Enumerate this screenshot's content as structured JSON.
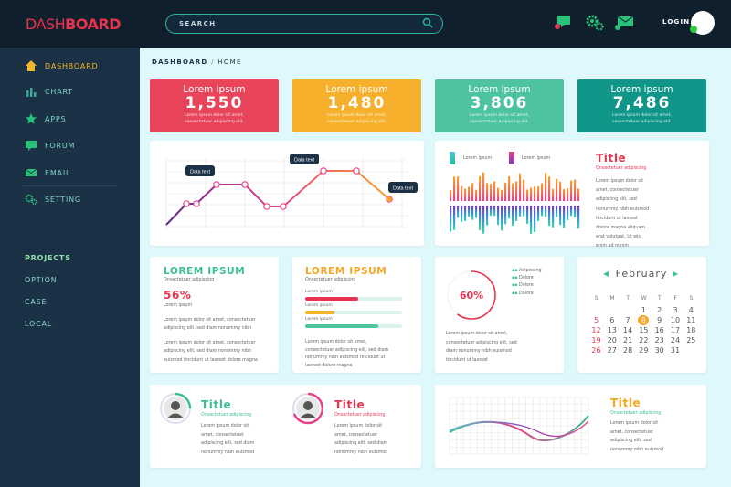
{
  "header": {
    "logo_part1": "DASH",
    "logo_part2": "BOARD",
    "search_placeholder": "SEARCH",
    "login_label": "LOGIN",
    "icons": [
      "chat-icon",
      "settings-gears-icon",
      "mail-icon"
    ]
  },
  "sidebar": {
    "items": [
      {
        "label": "DASHBOARD",
        "icon": "home-icon"
      },
      {
        "label": "CHART",
        "icon": "bar-chart-icon"
      },
      {
        "label": "APPS",
        "icon": "star-icon"
      },
      {
        "label": "FORUM",
        "icon": "chat-bubble-icon"
      },
      {
        "label": "EMAIL",
        "icon": "envelope-icon"
      },
      {
        "label": "SETTING",
        "icon": "gears-icon"
      }
    ],
    "section_title": "PROJECTS",
    "section_items": [
      "OPTION",
      "CASE",
      "LOCAL"
    ]
  },
  "breadcrumb": {
    "root": "DASHBOARD",
    "separator": " / ",
    "current": "HOME"
  },
  "stats": [
    {
      "title": "Lorem ipsum",
      "value": "1,550",
      "sub1": "Lorem ipsum dolor sit amet,",
      "sub2": "consectetuer adipiscing elit.",
      "color": "#e8455a"
    },
    {
      "title": "Lorem ipsum",
      "value": "1,480",
      "sub1": "Lorem ipsum dolor sit amet,",
      "sub2": "consectetuer adipiscing elit.",
      "color": "#f7b02c"
    },
    {
      "title": "Lorem ipsum",
      "value": "3,806",
      "sub1": "Lorem ipsum dolor sit amet,",
      "sub2": "consectetuer adipiscing elit.",
      "color": "#4dc3a0"
    },
    {
      "title": "Lorem ipsum",
      "value": "7,486",
      "sub1": "Lorem ipsum dolor sit amet,",
      "sub2": "consectetuer adipiscing elit.",
      "color": "#0f9688"
    }
  ],
  "line_chart": {
    "labels": [
      "Data text",
      "Data text",
      "Data text"
    ]
  },
  "bar_panel": {
    "legend": [
      "Lorem ipsum",
      "Lorem ipsum"
    ],
    "title": "Title",
    "subtitle": "Onsectetuer adipiscing",
    "lines": [
      "Lorem ipsum dolor sit",
      "amet, consectetuer",
      "adipiscing elit, sed",
      "nonummy nibh euismod",
      "tincidunt ut laoreet",
      "dolore magna aliquam",
      "erat volutpat. Ut wisi",
      "enim ad minim"
    ]
  },
  "card_green": {
    "title": "LOREM IPSUM",
    "subtitle": "Onsectetuer adipiscing",
    "percent": "56%",
    "percent_label": "Lorem ipsum",
    "p1": [
      "Lorem ipsum dolor sit amet, consectetuer",
      "adipiscing elit, sed diam nonummy nibh"
    ],
    "p2": [
      "Lorem ipsum dolor sit amet, consectetuer",
      "adipiscing elit, sed diam nonummy nibh",
      "euismod tincidunt ut laoreet dolore magna"
    ]
  },
  "card_orange": {
    "title": "LOREM IPSUM",
    "subtitle": "Onsectetuer adipiscing",
    "bars": [
      {
        "label": "Lorem ipsum",
        "value": 0.55,
        "color": "#e8344e"
      },
      {
        "label": "Lorem ipsum",
        "value": 0.3,
        "color": "#f5b52a"
      },
      {
        "label": "Lorem ipsum",
        "value": 0.75,
        "color": "#4dc3a0"
      }
    ],
    "p": [
      "Lorem ipsum dolor sit amet,",
      "consectetuer adipiscing elit, sed diam",
      "nonummy nibh euismod tincidunt ut",
      "laoreet dolore magna",
      "adipiscing elit, sed diam"
    ]
  },
  "donut": {
    "percent": "60%",
    "value": 0.6,
    "legend": [
      "Adipiscing",
      "Dolore",
      "Dolore",
      "Dolore"
    ],
    "p": [
      "Lorem ipsum dolor sit amet,",
      "consectetuer adipiscing elit, sed",
      "diam nonummy nibh euismod",
      "tincidunt ut laoreet"
    ]
  },
  "calendar": {
    "month": "February",
    "days": [
      "S",
      "M",
      "T",
      "W",
      "T",
      "F",
      "S"
    ],
    "weeks": [
      [
        "",
        "",
        "",
        "1",
        "2",
        "3",
        "4"
      ],
      [
        "5",
        "6",
        "7",
        "8",
        "9",
        "10",
        "11"
      ],
      [
        "12",
        "13",
        "14",
        "15",
        "16",
        "17",
        "18"
      ],
      [
        "19",
        "20",
        "21",
        "22",
        "23",
        "24",
        "25"
      ],
      [
        "26",
        "27",
        "28",
        "29",
        "30",
        "31",
        ""
      ]
    ],
    "selected": "8"
  },
  "profiles": [
    {
      "title": "Title",
      "subtitle": "Onsectetuer adipiscing",
      "lines": [
        "Lorem ipsum dolor sit",
        "amet, consectetuer",
        "adipiscing elit, sed diam",
        "nonummy nibh euismod"
      ]
    },
    {
      "title": "Title",
      "subtitle": "Onsectetuer adipiscing",
      "lines": [
        "Lorem ipsum dolor sit",
        "amet, consectetuer",
        "adipiscing elit, sed diam",
        "nonummy nibh euismod"
      ]
    }
  ],
  "wave_panel": {
    "title": "Title",
    "subtitle": "Onsectetuer adipiscing",
    "lines": [
      "Lorem ipsum dolor sit",
      "amet, consectetuer",
      "adipiscing elit, sed",
      "nonummy nibh euismod"
    ]
  }
}
